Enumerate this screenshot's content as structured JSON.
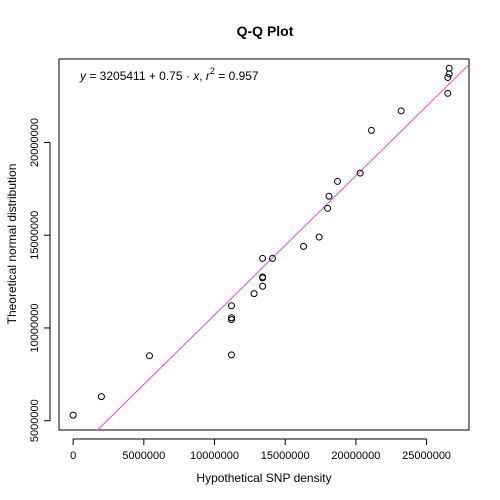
{
  "chart_data": {
    "type": "scatter",
    "title": "Q-Q Plot",
    "xlabel": "Hypothetical SNP density",
    "ylabel": "Theoretical normal distribution",
    "xlim": [
      -1000000,
      28000000
    ],
    "ylim": [
      4500000,
      24500000
    ],
    "x_ticks": [
      0,
      5000000,
      10000000,
      15000000,
      20000000,
      25000000
    ],
    "x_tick_labels": [
      "0",
      "5000000",
      "10000000",
      "15000000",
      "20000000",
      "25000000"
    ],
    "y_ticks": [
      5000000,
      10000000,
      15000000,
      20000000
    ],
    "y_tick_labels": [
      "5000000",
      "10000000",
      "15000000",
      "20000000"
    ],
    "grid": false,
    "annotation": {
      "y_var": "y",
      "equation_body": " = 3205411 + 0.75 · ",
      "x_var": "x",
      "separator": ",  ",
      "r_var": "r",
      "r_exp": "2",
      "r_value": " = 0.957"
    },
    "fit_line": {
      "intercept": 3205411,
      "slope": 0.75,
      "color": "#ee44ee"
    },
    "points": [
      {
        "x": 0,
        "y": 5300000
      },
      {
        "x": 2000000,
        "y": 6300000
      },
      {
        "x": 5400000,
        "y": 8500000
      },
      {
        "x": 11200000,
        "y": 8550000
      },
      {
        "x": 11200000,
        "y": 10450000
      },
      {
        "x": 11200000,
        "y": 10550000
      },
      {
        "x": 11200000,
        "y": 11200000
      },
      {
        "x": 12800000,
        "y": 11850000
      },
      {
        "x": 13400000,
        "y": 12250000
      },
      {
        "x": 13400000,
        "y": 12700000
      },
      {
        "x": 13400000,
        "y": 12750000
      },
      {
        "x": 13400000,
        "y": 13750000
      },
      {
        "x": 14100000,
        "y": 13750000
      },
      {
        "x": 16300000,
        "y": 14400000
      },
      {
        "x": 17400000,
        "y": 14900000
      },
      {
        "x": 18000000,
        "y": 16450000
      },
      {
        "x": 18100000,
        "y": 17100000
      },
      {
        "x": 18700000,
        "y": 17900000
      },
      {
        "x": 20300000,
        "y": 18350000
      },
      {
        "x": 21100000,
        "y": 20650000
      },
      {
        "x": 23200000,
        "y": 21700000
      },
      {
        "x": 26500000,
        "y": 22650000
      },
      {
        "x": 26500000,
        "y": 23500000
      },
      {
        "x": 26600000,
        "y": 23700000
      },
      {
        "x": 26600000,
        "y": 24000000
      }
    ]
  }
}
